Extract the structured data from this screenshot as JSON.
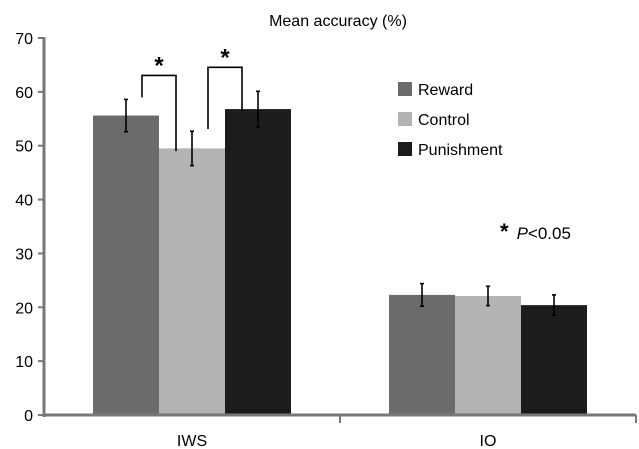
{
  "chart_data": {
    "type": "bar",
    "title": "Mean accuracy (%)",
    "xlabel": "",
    "ylabel": "",
    "ylim": [
      0,
      70
    ],
    "yticks": [
      0,
      10,
      20,
      30,
      40,
      50,
      60,
      70
    ],
    "categories": [
      "IWS",
      "IO"
    ],
    "series": [
      {
        "name": "Reward",
        "color": "#6b6b6b",
        "values": [
          55.6,
          22.3
        ],
        "errors": [
          3.0,
          2.1
        ]
      },
      {
        "name": "Control",
        "color": "#b3b3b3",
        "values": [
          49.5,
          22.1
        ],
        "errors": [
          3.2,
          1.8
        ]
      },
      {
        "name": "Punishment",
        "color": "#1c1c1c",
        "values": [
          56.8,
          20.4
        ],
        "errors": [
          3.3,
          1.9
        ]
      }
    ],
    "legend_position": "right",
    "grid": false,
    "significance": [
      {
        "category": "IWS",
        "between": [
          "Reward",
          "Control"
        ],
        "marker": "*"
      },
      {
        "category": "IWS",
        "between": [
          "Control",
          "Punishment"
        ],
        "marker": "*"
      }
    ],
    "annotation": {
      "star": "*",
      "p": "P",
      "rest": "<0.05"
    }
  }
}
